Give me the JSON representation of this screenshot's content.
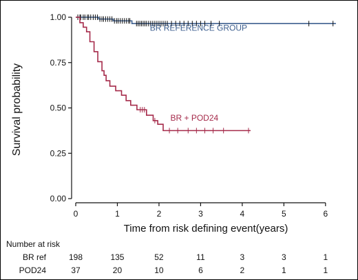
{
  "chart_data": {
    "type": "line",
    "subtype": "kaplan-meier survival curve",
    "ylabel": "Survival probability",
    "xlabel": "Time from risk defining event(years)",
    "xlim": [
      0,
      6.4
    ],
    "ylim": [
      0,
      1.0
    ],
    "x_ticks": [
      0,
      1,
      2,
      3,
      4,
      5,
      6
    ],
    "y_ticks": [
      0.0,
      0.25,
      0.5,
      0.75,
      1.0
    ],
    "x_tick_labels": [
      "0",
      "1",
      "2",
      "3",
      "4",
      "5",
      "6"
    ],
    "y_tick_labels": [
      "0.00",
      "0.25",
      "0.50",
      "0.75",
      "1.00"
    ],
    "grid": false,
    "series": [
      {
        "name": "BR REFERENCE GROUP",
        "color": "#3d5f8f",
        "steps": [
          [
            0,
            1.0
          ],
          [
            0.55,
            0.99
          ],
          [
            0.9,
            0.98
          ],
          [
            1.35,
            0.965
          ],
          [
            6.25,
            0.965
          ]
        ],
        "censor_times": [
          0.05,
          0.1,
          0.12,
          0.18,
          0.22,
          0.28,
          0.31,
          0.36,
          0.42,
          0.47,
          0.52,
          0.58,
          0.63,
          0.67,
          0.72,
          0.77,
          0.82,
          0.87,
          0.93,
          0.98,
          1.02,
          1.07,
          1.12,
          1.17,
          1.22,
          1.27,
          1.3,
          1.46,
          1.5,
          1.54,
          1.58,
          1.62,
          1.66,
          1.7,
          1.75,
          1.8,
          1.85,
          1.9,
          1.95,
          2.0,
          2.05,
          2.1,
          2.15,
          2.2,
          2.3,
          2.4,
          2.5,
          2.6,
          2.7,
          2.8,
          2.9,
          3.0,
          3.1,
          3.25,
          3.45,
          5.6,
          6.18
        ]
      },
      {
        "name": "BR + POD24",
        "color": "#a52a4a",
        "steps": [
          [
            0,
            1.0
          ],
          [
            0.1,
            0.97
          ],
          [
            0.18,
            0.945
          ],
          [
            0.26,
            0.92
          ],
          [
            0.34,
            0.865
          ],
          [
            0.44,
            0.81
          ],
          [
            0.53,
            0.755
          ],
          [
            0.63,
            0.705
          ],
          [
            0.68,
            0.68
          ],
          [
            0.73,
            0.65
          ],
          [
            0.82,
            0.62
          ],
          [
            0.96,
            0.595
          ],
          [
            1.1,
            0.57
          ],
          [
            1.21,
            0.54
          ],
          [
            1.32,
            0.515
          ],
          [
            1.47,
            0.49
          ],
          [
            1.7,
            0.46
          ],
          [
            1.86,
            0.43
          ],
          [
            1.97,
            0.41
          ],
          [
            2.1,
            0.375
          ],
          [
            4.2,
            0.375
          ]
        ],
        "censor_times": [
          1.55,
          1.6,
          1.65,
          1.9,
          2.25,
          2.45,
          2.7,
          2.9,
          3.1,
          3.3,
          3.55,
          4.15
        ]
      }
    ],
    "annotations": [
      {
        "text": "BR REFERENCE GROUP",
        "x": 2.95,
        "y": 0.925,
        "color": "#3d5f8f"
      },
      {
        "text": "BR + POD24",
        "x": 2.85,
        "y": 0.43,
        "color": "#a52a4a"
      }
    ],
    "risk_table": {
      "title": "Number at risk",
      "times": [
        0,
        1,
        2,
        3,
        4,
        5,
        6
      ],
      "rows": [
        {
          "label": "BR ref",
          "values": [
            "198",
            "135",
            "52",
            "11",
            "3",
            "3",
            "1"
          ]
        },
        {
          "label": "POD24",
          "values": [
            "37",
            "20",
            "10",
            "6",
            "2",
            "1",
            "1"
          ]
        }
      ]
    }
  }
}
